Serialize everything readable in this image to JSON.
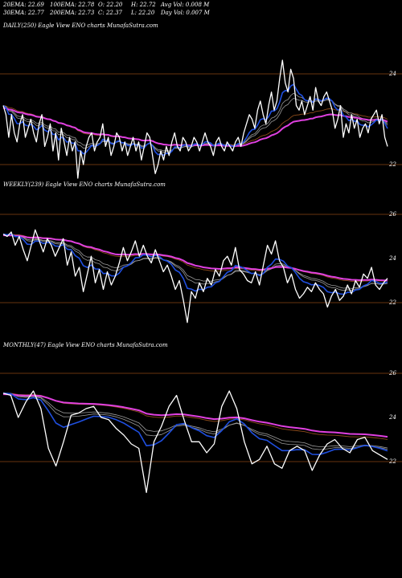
{
  "header": {
    "row1": [
      "20EMA: 22.69",
      "100EMA: 22.78",
      "O: 22.20",
      "H: 22.72",
      "Avg Vol: 0.008 M"
    ],
    "row2": [
      "30EMA: 22.77",
      "200EMA: 22.73",
      "C: 22.37",
      "L: 22.20",
      "Day Vol: 0.007 M"
    ]
  },
  "colors": {
    "background": "#000000",
    "price": "#ffffff",
    "ema_short": "#1f4fe0",
    "ema_magenta": "#e040e0",
    "ema_brown": "#8b4a1a",
    "ema_gray": "#9a9a9a",
    "gridline": "#8b4513"
  },
  "chart_data": [
    {
      "type": "line",
      "title": "DAILY(250) Eagle  View  ENO charts MunafaSutra.com",
      "yticks": [
        "24",
        "22"
      ],
      "grid": true,
      "series": {
        "price": [
          23.3,
          23.1,
          22.6,
          23.1,
          22.7,
          22.5,
          22.9,
          23.1,
          22.6,
          22.8,
          23.0,
          22.7,
          22.5,
          22.9,
          23.1,
          22.4,
          22.6,
          22.9,
          22.3,
          22.7,
          22.1,
          22.8,
          22.5,
          22.2,
          22.6,
          22.3,
          22.5,
          21.7,
          22.3,
          22.0,
          22.4,
          22.6,
          22.7,
          22.3,
          22.5,
          22.6,
          22.9,
          22.4,
          22.6,
          22.2,
          22.4,
          22.7,
          22.6,
          22.3,
          22.5,
          22.2,
          22.4,
          22.6,
          22.3,
          22.5,
          22.1,
          22.4,
          22.7,
          22.6,
          22.2,
          21.8,
          22.0,
          22.3,
          22.1,
          22.4,
          22.2,
          22.5,
          22.7,
          22.4,
          22.3,
          22.6,
          22.5,
          22.3,
          22.4,
          22.6,
          22.5,
          22.3,
          22.5,
          22.7,
          22.5,
          22.4,
          22.2,
          22.5,
          22.6,
          22.4,
          22.3,
          22.5,
          22.4,
          22.3,
          22.5,
          22.6,
          22.4,
          22.7,
          22.9,
          23.1,
          23.0,
          22.8,
          23.2,
          23.4,
          23.1,
          22.9,
          23.3,
          23.6,
          23.2,
          23.4,
          23.9,
          24.3,
          23.8,
          23.6,
          24.1,
          23.9,
          23.3,
          23.2,
          23.4,
          23.1,
          23.3,
          23.5,
          23.2,
          23.7,
          23.4,
          23.3,
          23.5,
          23.6,
          23.4,
          23.2,
          22.8,
          23.0,
          23.3,
          22.6,
          22.9,
          22.7,
          23.1,
          22.8,
          23.0,
          22.6,
          22.8,
          22.9,
          22.7,
          23.0,
          23.1,
          23.2,
          22.9,
          23.1,
          22.6,
          22.4
        ]
      }
    },
    {
      "type": "line",
      "title": "WEEKLY(239) Eagle  View  ENO charts MunafaSutra.com",
      "yticks": [
        "26",
        "24",
        "22"
      ],
      "grid": true,
      "series": {
        "price": [
          25.1,
          25.0,
          25.2,
          24.6,
          25.0,
          24.4,
          23.9,
          24.6,
          25.3,
          24.8,
          24.3,
          24.9,
          24.6,
          24.1,
          24.5,
          24.9,
          23.7,
          24.3,
          23.2,
          23.6,
          22.5,
          23.3,
          24.1,
          22.9,
          23.5,
          22.6,
          23.4,
          22.8,
          23.2,
          23.8,
          24.5,
          23.9,
          24.3,
          24.8,
          24.1,
          24.6,
          24.1,
          23.8,
          24.4,
          23.9,
          23.4,
          23.7,
          23.2,
          22.6,
          23.0,
          22.1,
          21.1,
          22.5,
          22.2,
          22.9,
          22.5,
          23.1,
          22.8,
          23.5,
          23.2,
          23.9,
          24.1,
          23.7,
          24.5,
          23.5,
          23.3,
          23.0,
          22.9,
          23.4,
          22.8,
          23.7,
          24.6,
          24.2,
          24.8,
          23.9,
          23.6,
          22.9,
          23.3,
          22.6,
          22.2,
          22.4,
          22.7,
          22.5,
          22.9,
          22.6,
          22.4,
          21.8,
          22.3,
          22.6,
          22.1,
          22.3,
          22.8,
          22.4,
          23.0,
          22.7,
          23.3,
          23.1,
          23.6,
          22.8,
          22.6,
          22.9,
          23.1
        ]
      }
    },
    {
      "type": "line",
      "title": "MONTHLY(47) Eagle  View  ENO charts MunafaSutra.com",
      "yticks": [
        "26",
        "24",
        "22"
      ],
      "grid": true,
      "series": {
        "price": [
          25.1,
          25.0,
          24.0,
          24.7,
          25.2,
          24.4,
          22.6,
          21.8,
          22.9,
          24.1,
          24.2,
          24.4,
          24.5,
          24.0,
          23.9,
          23.5,
          23.2,
          22.8,
          22.6,
          20.6,
          22.9,
          23.6,
          24.5,
          25.0,
          23.9,
          22.9,
          22.9,
          22.4,
          22.8,
          24.5,
          25.2,
          24.4,
          22.9,
          21.9,
          22.1,
          22.7,
          21.9,
          21.7,
          22.5,
          22.7,
          22.5,
          21.6,
          22.3,
          22.8,
          23.0,
          22.6,
          22.4,
          23.0,
          23.1,
          22.5,
          22.3,
          22.1
        ]
      }
    }
  ]
}
